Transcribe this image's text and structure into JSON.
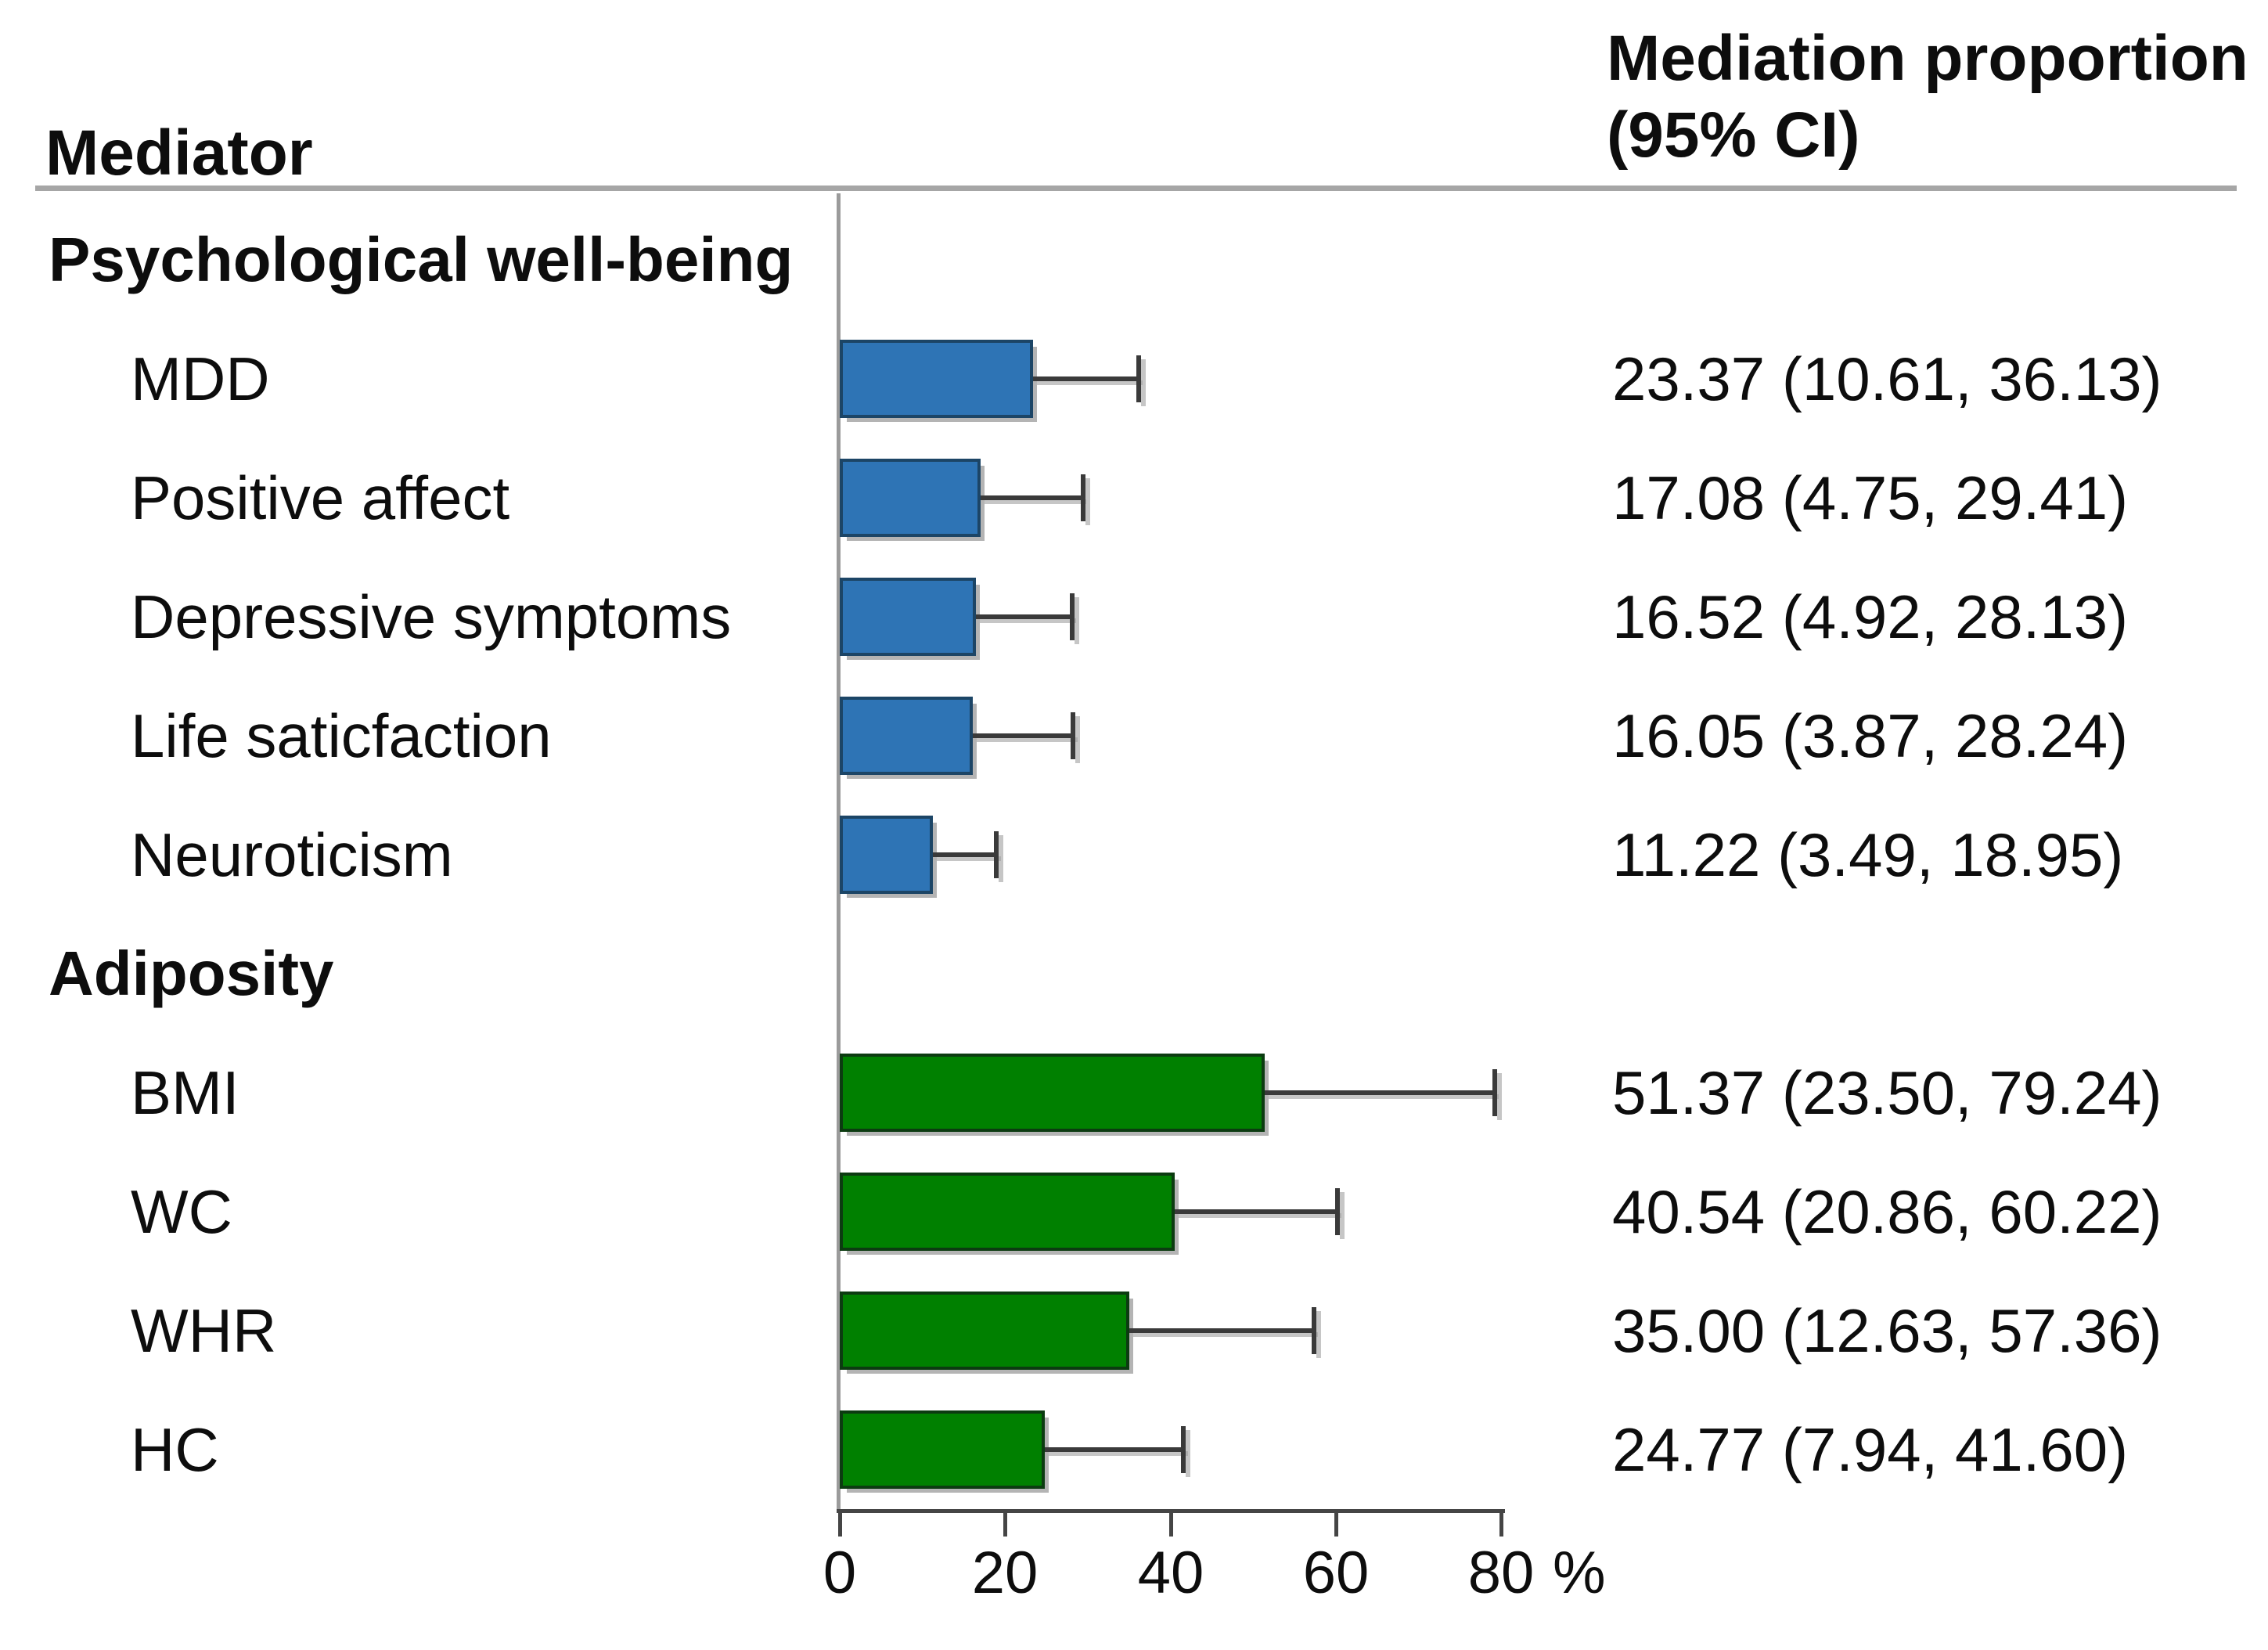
{
  "header": {
    "left": "Mediator",
    "right_line1": "Mediation proportion",
    "right_line2": "(95% CI)"
  },
  "colors": {
    "blue_fill": "#2E74B5",
    "blue_border": "#1C4566",
    "green_fill": "#008000",
    "green_border": "#0C3B11",
    "whisker": "#3A3A3A",
    "axis_line": "#454545",
    "baseline": "#9B9B9B",
    "header_rule": "#A6A6A6",
    "shadow": "#B4B4B4"
  },
  "chart_data": {
    "type": "bar",
    "orientation": "horizontal",
    "xlim": [
      0,
      80
    ],
    "xticks": [
      0,
      20,
      40,
      60,
      80
    ],
    "unit": "%",
    "grid": false,
    "legend": false,
    "groups": [
      {
        "label": "Psychological well-being",
        "bar_color": "#2E74B5",
        "bar_border": "#1C4566",
        "items": [
          {
            "label": "MDD",
            "value": 23.37,
            "ci_low": 10.61,
            "ci_high": 36.13,
            "display": "23.37 (10.61, 36.13)"
          },
          {
            "label": "Positive affect",
            "value": 17.08,
            "ci_low": 4.75,
            "ci_high": 29.41,
            "display": "17.08 (4.75, 29.41)"
          },
          {
            "label": "Depressive symptoms",
            "value": 16.52,
            "ci_low": 4.92,
            "ci_high": 28.13,
            "display": "16.52 (4.92, 28.13)"
          },
          {
            "label": "Life saticfaction",
            "value": 16.05,
            "ci_low": 3.87,
            "ci_high": 28.24,
            "display": "16.05 (3.87, 28.24)"
          },
          {
            "label": "Neuroticism",
            "value": 11.22,
            "ci_low": 3.49,
            "ci_high": 18.95,
            "display": "11.22 (3.49, 18.95)"
          }
        ]
      },
      {
        "label": "Adiposity",
        "bar_color": "#008000",
        "bar_border": "#0C3B11",
        "items": [
          {
            "label": "BMI",
            "value": 51.37,
            "ci_low": 23.5,
            "ci_high": 79.24,
            "display": "51.37 (23.50, 79.24)"
          },
          {
            "label": "WC",
            "value": 40.54,
            "ci_low": 20.86,
            "ci_high": 60.22,
            "display": "40.54 (20.86, 60.22)"
          },
          {
            "label": "WHR",
            "value": 35.0,
            "ci_low": 12.63,
            "ci_high": 57.36,
            "display": "35.00 (12.63, 57.36)"
          },
          {
            "label": "HC",
            "value": 24.77,
            "ci_low": 7.94,
            "ci_high": 41.6,
            "display": "24.77 (7.94, 41.60)"
          }
        ]
      }
    ]
  }
}
